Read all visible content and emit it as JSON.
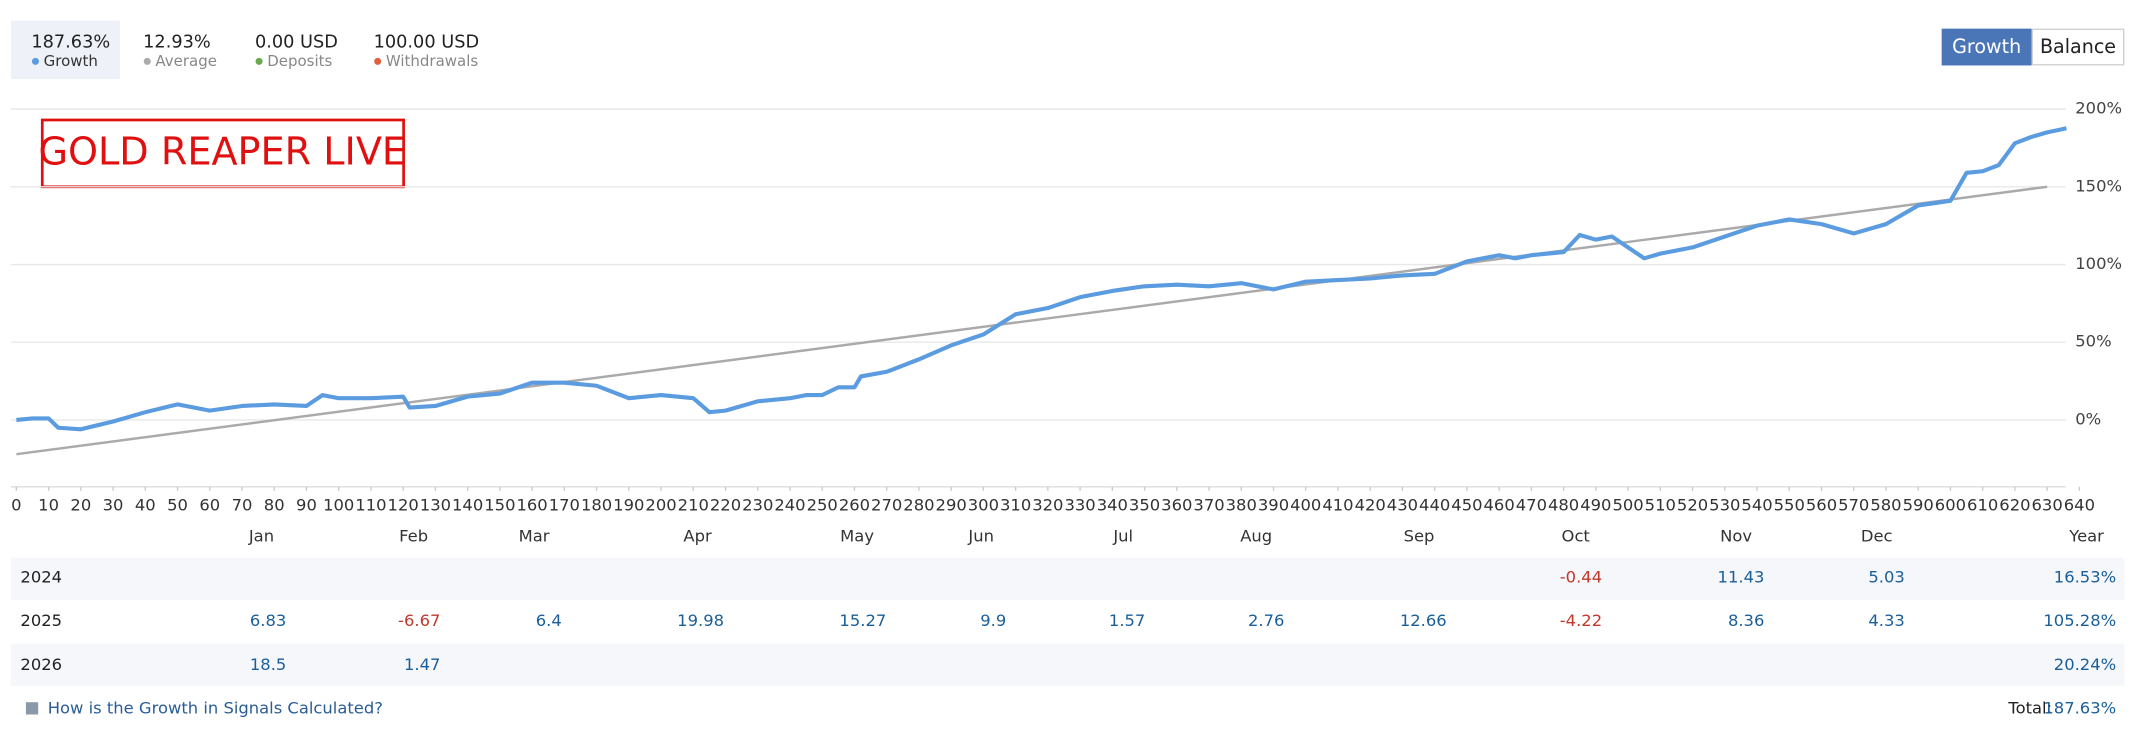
{
  "header": {
    "stats": [
      {
        "value": "187.63%",
        "label": "Growth",
        "color": "#5b9be0"
      },
      {
        "value": "12.93%",
        "label": "Average",
        "color": "#aaaaaa"
      },
      {
        "value": "0.00 USD",
        "label": "Deposits",
        "color": "#6aa84f"
      },
      {
        "value": "100.00 USD",
        "label": "Withdrawals",
        "color": "#e06040"
      }
    ],
    "tabs": [
      "Growth",
      "Balance"
    ]
  },
  "chart_data": {
    "type": "line",
    "title": "GOLD REAPER LIVE",
    "series": [
      {
        "color": "#5b9be0",
        "x": [
          0,
          5,
          10,
          13,
          20,
          30,
          40,
          50,
          60,
          70,
          80,
          90,
          95,
          100,
          110,
          120,
          122,
          130,
          140,
          150,
          160,
          170,
          180,
          190,
          200,
          210,
          215,
          220,
          230,
          240,
          245,
          250,
          255,
          260,
          262,
          270,
          280,
          290,
          300,
          310,
          320,
          330,
          340,
          350,
          360,
          370,
          380,
          390,
          400,
          410,
          420,
          430,
          440,
          450,
          460,
          465,
          470,
          480,
          485,
          490,
          495,
          500,
          505,
          510,
          520,
          530,
          540,
          550,
          560,
          570,
          580,
          590,
          600,
          605,
          610,
          615,
          620,
          625,
          630,
          636
        ],
        "values": [
          0,
          1,
          1,
          -5,
          -6,
          -1,
          5,
          10,
          6,
          9,
          10,
          9,
          16,
          14,
          14,
          15,
          8,
          9,
          15,
          17,
          24,
          24,
          22,
          14,
          16,
          14,
          5,
          6,
          12,
          14,
          16,
          16,
          21,
          21,
          28,
          31,
          39,
          48,
          55,
          68,
          72,
          79,
          83,
          86,
          87,
          86,
          88,
          84,
          89,
          90,
          91,
          93,
          94,
          102,
          106,
          104,
          106,
          108,
          119,
          116,
          118,
          111,
          104,
          107,
          111,
          118,
          125,
          129,
          126,
          120,
          126,
          138,
          141,
          159,
          160,
          164,
          178,
          182,
          185,
          187.63
        ]
      },
      {
        "color": "#aaaaaa",
        "x": [
          0,
          630
        ],
        "values": [
          -22,
          150
        ]
      }
    ],
    "xlim": [
      0,
      640
    ],
    "xticks": [
      0,
      10,
      20,
      30,
      40,
      50,
      60,
      70,
      80,
      90,
      100,
      110,
      120,
      130,
      140,
      150,
      160,
      170,
      180,
      190,
      200,
      210,
      220,
      230,
      240,
      250,
      260,
      270,
      280,
      290,
      300,
      310,
      320,
      330,
      340,
      350,
      360,
      370,
      380,
      390,
      400,
      410,
      420,
      430,
      440,
      450,
      460,
      470,
      480,
      490,
      500,
      510,
      520,
      530,
      540,
      550,
      560,
      570,
      580,
      590,
      600,
      610,
      620,
      630,
      640
    ],
    "ylim": [
      -43,
      205
    ],
    "yticks": [
      {
        "value": 0,
        "label": "0%"
      },
      {
        "value": 50,
        "label": "50%"
      },
      {
        "value": 100,
        "label": "100%"
      },
      {
        "value": 150,
        "label": "150%"
      },
      {
        "value": 200,
        "label": "200%"
      }
    ],
    "grid": true
  },
  "table": {
    "columns": [
      "Jan",
      "Feb",
      "Mar",
      "Apr",
      "May",
      "Jun",
      "Jul",
      "Aug",
      "Sep",
      "Oct",
      "Nov",
      "Dec",
      "Year"
    ],
    "rows": [
      {
        "year": "2024",
        "cells": [
          null,
          null,
          null,
          null,
          null,
          null,
          null,
          null,
          null,
          "-0.44",
          "11.43",
          "5.03",
          "16.53%"
        ]
      },
      {
        "year": "2025",
        "cells": [
          "6.83",
          "-6.67",
          "6.4",
          "19.98",
          "15.27",
          "9.9",
          "1.57",
          "2.76",
          "12.66",
          "-4.22",
          "8.36",
          "4.33",
          "105.28%"
        ]
      },
      {
        "year": "2026",
        "cells": [
          "18.5",
          "1.47",
          null,
          null,
          null,
          null,
          null,
          null,
          null,
          null,
          null,
          null,
          "20.24%"
        ]
      }
    ]
  },
  "footer": {
    "link": "How is the Growth in Signals Calculated?",
    "total_label": "Total:",
    "total": "187.63%"
  }
}
